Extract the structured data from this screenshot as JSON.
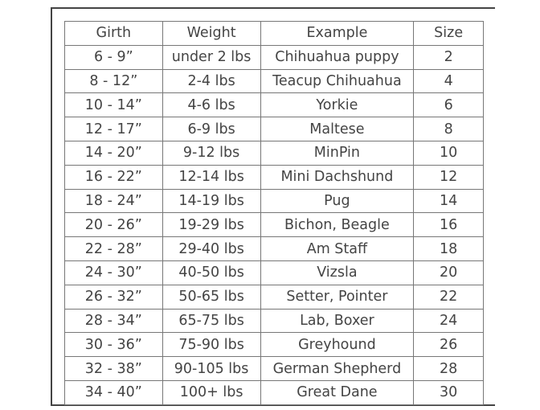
{
  "headers": [
    "Girth",
    "Weight",
    "Example",
    "Size"
  ],
  "rows": [
    [
      "6 - 9”",
      "under 2 lbs",
      "Chihuahua puppy",
      "2"
    ],
    [
      "8 - 12”",
      "2-4 lbs",
      "Teacup Chihuahua",
      "4"
    ],
    [
      "10 - 14”",
      "4-6 lbs",
      "Yorkie",
      "6"
    ],
    [
      "12 - 17”",
      "6-9 lbs",
      "Maltese",
      "8"
    ],
    [
      "14 - 20”",
      "9-12 lbs",
      "MinPin",
      "10"
    ],
    [
      "16 - 22”",
      "12-14 lbs",
      "Mini Dachshund",
      "12"
    ],
    [
      "18 - 24”",
      "14-19 lbs",
      "Pug",
      "14"
    ],
    [
      "20 - 26”",
      "19-29 lbs",
      "Bichon, Beagle",
      "16"
    ],
    [
      "22 - 28”",
      "29-40 lbs",
      "Am Staff",
      "18"
    ],
    [
      "24 - 30”",
      "40-50 lbs",
      "Vizsla",
      "20"
    ],
    [
      "26 - 32”",
      "50-65 lbs",
      "Setter, Pointer",
      "22"
    ],
    [
      "28 - 34”",
      "65-75 lbs",
      "Lab, Boxer",
      "24"
    ],
    [
      "30 - 36”",
      "75-90 lbs",
      "Greyhound",
      "26"
    ],
    [
      "32 - 38”",
      "90-105 lbs",
      "German Shepherd",
      "28"
    ],
    [
      "34 - 40”",
      "100+ lbs",
      "Great Dane",
      "30"
    ]
  ]
}
